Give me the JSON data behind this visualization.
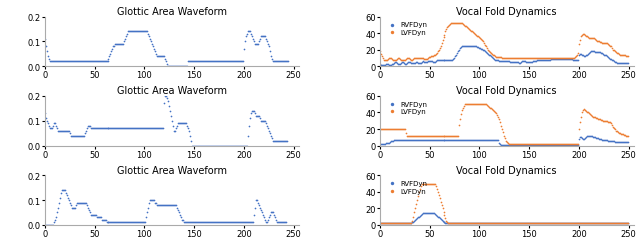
{
  "title_left": "Glottic Area Waveform",
  "title_right": "Vocal Fold Dynamics",
  "legend_label1": "RVFDyn",
  "legend_label2": "LVFDyn",
  "dot_color_blue": "#4472C4",
  "dot_color_orange": "#ED7D31",
  "background_color": "#ffffff",
  "xlim": [
    0,
    255
  ],
  "ylim_left": [
    0,
    0.2
  ],
  "ylim_right": [
    0,
    60
  ],
  "yticks_left": [
    0.0,
    0.1,
    0.2
  ],
  "yticks_right": [
    0,
    20,
    40,
    60
  ],
  "xticks": [
    0,
    50,
    100,
    150,
    200,
    250
  ],
  "row1_left_y": [
    0.11,
    0.08,
    0.06,
    0.04,
    0.03,
    0.02,
    0.02,
    0.02,
    0.02,
    0.02,
    0.02,
    0.02,
    0.02,
    0.02,
    0.02,
    0.02,
    0.02,
    0.02,
    0.02,
    0.02,
    0.02,
    0.02,
    0.02,
    0.02,
    0.02,
    0.02,
    0.02,
    0.02,
    0.02,
    0.02,
    0.02,
    0.02,
    0.02,
    0.02,
    0.02,
    0.02,
    0.02,
    0.02,
    0.02,
    0.02,
    0.02,
    0.02,
    0.02,
    0.02,
    0.02,
    0.02,
    0.02,
    0.02,
    0.02,
    0.02,
    0.02,
    0.02,
    0.02,
    0.02,
    0.02,
    0.02,
    0.02,
    0.02,
    0.02,
    0.02,
    0.02,
    0.02,
    0.02,
    0.02,
    0.03,
    0.04,
    0.05,
    0.06,
    0.07,
    0.08,
    0.08,
    0.09,
    0.09,
    0.09,
    0.09,
    0.09,
    0.09,
    0.09,
    0.09,
    0.09,
    0.1,
    0.11,
    0.12,
    0.13,
    0.14,
    0.14,
    0.14,
    0.14,
    0.14,
    0.14,
    0.14,
    0.14,
    0.14,
    0.14,
    0.14,
    0.14,
    0.14,
    0.14,
    0.14,
    0.14,
    0.14,
    0.14,
    0.14,
    0.14,
    0.13,
    0.12,
    0.11,
    0.1,
    0.09,
    0.08,
    0.07,
    0.06,
    0.05,
    0.04,
    0.04,
    0.04,
    0.04,
    0.04,
    0.04,
    0.04,
    0.04,
    0.03,
    0.02,
    0.01,
    0.0,
    0.0,
    0.0,
    0.0,
    0.0,
    0.0,
    0.0,
    0.0,
    0.0,
    0.0,
    0.0,
    0.0,
    0.0,
    0.0,
    0.0,
    0.0,
    0.0,
    0.0,
    0.0,
    0.0,
    0.02,
    0.02,
    0.02,
    0.02,
    0.02,
    0.02,
    0.02,
    0.02,
    0.02,
    0.02,
    0.02,
    0.02,
    0.02,
    0.02,
    0.02,
    0.02,
    0.02,
    0.02,
    0.02,
    0.02,
    0.02,
    0.02,
    0.02,
    0.02,
    0.02,
    0.02,
    0.02,
    0.02,
    0.02,
    0.02,
    0.02,
    0.02,
    0.02,
    0.02,
    0.02,
    0.02,
    0.02,
    0.02,
    0.02,
    0.02,
    0.02,
    0.02,
    0.02,
    0.02,
    0.02,
    0.02,
    0.02,
    0.02,
    0.02,
    0.02,
    0.02,
    0.02,
    0.02,
    0.02,
    0.02,
    0.02,
    0.07,
    0.1,
    0.12,
    0.13,
    0.14,
    0.14,
    0.14,
    0.13,
    0.12,
    0.11,
    0.1,
    0.09,
    0.09,
    0.09,
    0.09,
    0.1,
    0.11,
    0.12,
    0.12,
    0.12,
    0.12,
    0.12,
    0.11,
    0.1,
    0.09,
    0.08,
    0.06,
    0.04,
    0.03,
    0.02,
    0.02,
    0.02,
    0.02,
    0.02,
    0.02,
    0.02,
    0.02,
    0.02,
    0.02,
    0.02,
    0.02,
    0.02,
    0.02,
    0.02,
    0.02
  ],
  "row1_right_rvf_y": [
    3,
    2,
    2,
    2,
    2,
    2,
    3,
    3,
    3,
    2,
    2,
    2,
    3,
    3,
    4,
    5,
    5,
    4,
    3,
    3,
    3,
    4,
    5,
    5,
    4,
    3,
    3,
    4,
    5,
    5,
    5,
    4,
    4,
    4,
    4,
    4,
    5,
    5,
    4,
    4,
    4,
    4,
    5,
    6,
    5,
    5,
    5,
    5,
    6,
    6,
    6,
    6,
    6,
    5,
    5,
    5,
    6,
    7,
    7,
    7,
    7,
    7,
    7,
    7,
    7,
    7,
    7,
    7,
    7,
    7,
    7,
    7,
    7,
    8,
    9,
    10,
    12,
    14,
    16,
    18,
    20,
    22,
    23,
    24,
    25,
    25,
    25,
    24,
    24,
    24,
    24,
    24,
    25,
    25,
    25,
    24,
    24,
    24,
    23,
    23,
    22,
    22,
    21,
    21,
    20,
    19,
    18,
    17,
    16,
    15,
    14,
    13,
    12,
    11,
    10,
    9,
    8,
    7,
    7,
    7,
    6,
    6,
    6,
    6,
    6,
    6,
    6,
    6,
    6,
    6,
    6,
    5,
    5,
    5,
    5,
    5,
    5,
    5,
    5,
    5,
    4,
    4,
    5,
    6,
    6,
    6,
    6,
    5,
    5,
    5,
    5,
    5,
    5,
    5,
    6,
    6,
    6,
    6,
    7,
    7,
    7,
    7,
    7,
    7,
    7,
    7,
    7,
    7,
    7,
    8,
    8,
    8,
    9,
    9,
    9,
    9,
    9,
    9,
    9,
    9,
    9,
    9,
    9,
    9,
    9,
    9,
    9,
    9,
    9,
    9,
    9,
    9,
    9,
    9,
    8,
    8,
    7,
    7,
    7,
    7,
    14,
    15,
    15,
    14,
    13,
    12,
    12,
    13,
    14,
    15,
    16,
    17,
    18,
    18,
    18,
    18,
    17,
    17,
    17,
    17,
    17,
    17,
    16,
    16,
    15,
    14,
    14,
    13,
    12,
    11,
    10,
    9,
    9,
    8,
    7,
    6,
    5,
    5,
    4,
    4,
    4,
    4,
    4,
    4,
    4,
    4,
    4,
    4,
    4,
    4
  ],
  "row1_right_lvf_y": [
    18,
    15,
    12,
    10,
    8,
    7,
    7,
    8,
    9,
    10,
    10,
    10,
    9,
    8,
    8,
    8,
    8,
    9,
    10,
    10,
    9,
    8,
    7,
    7,
    7,
    8,
    9,
    10,
    10,
    10,
    9,
    8,
    8,
    9,
    10,
    10,
    10,
    10,
    10,
    10,
    10,
    10,
    10,
    10,
    9,
    9,
    9,
    9,
    10,
    11,
    11,
    12,
    12,
    12,
    13,
    14,
    15,
    16,
    18,
    20,
    22,
    25,
    28,
    32,
    35,
    38,
    42,
    45,
    47,
    49,
    50,
    51,
    52,
    52,
    52,
    52,
    52,
    52,
    52,
    52,
    52,
    52,
    52,
    52,
    51,
    50,
    49,
    48,
    47,
    46,
    45,
    44,
    43,
    42,
    41,
    40,
    39,
    38,
    37,
    36,
    35,
    34,
    33,
    32,
    30,
    28,
    26,
    24,
    22,
    20,
    18,
    17,
    16,
    15,
    14,
    13,
    12,
    11,
    11,
    11,
    11,
    11,
    11,
    10,
    10,
    10,
    10,
    10,
    10,
    10,
    10,
    10,
    10,
    10,
    10,
    10,
    10,
    10,
    10,
    10,
    10,
    10,
    10,
    10,
    10,
    10,
    10,
    10,
    10,
    10,
    10,
    10,
    10,
    10,
    10,
    10,
    10,
    10,
    10,
    10,
    10,
    10,
    10,
    10,
    10,
    10,
    10,
    10,
    10,
    10,
    10,
    10,
    10,
    10,
    10,
    10,
    10,
    10,
    10,
    10,
    10,
    10,
    10,
    10,
    10,
    10,
    10,
    10,
    10,
    10,
    10,
    10,
    10,
    10,
    10,
    10,
    11,
    12,
    14,
    16,
    27,
    32,
    36,
    38,
    39,
    39,
    38,
    37,
    36,
    35,
    34,
    34,
    34,
    34,
    34,
    34,
    33,
    32,
    31,
    30,
    30,
    29,
    29,
    28,
    28,
    28,
    28,
    28,
    28,
    27,
    26,
    25,
    24,
    22,
    20,
    19,
    18,
    17,
    16,
    16,
    15,
    14,
    14,
    14,
    14,
    13,
    13,
    12,
    12,
    12
  ],
  "row2_left_y": [
    0.13,
    0.11,
    0.1,
    0.09,
    0.08,
    0.07,
    0.07,
    0.07,
    0.08,
    0.09,
    0.09,
    0.08,
    0.07,
    0.06,
    0.06,
    0.06,
    0.06,
    0.06,
    0.06,
    0.06,
    0.06,
    0.06,
    0.06,
    0.06,
    0.06,
    0.05,
    0.04,
    0.04,
    0.04,
    0.04,
    0.04,
    0.04,
    0.04,
    0.04,
    0.04,
    0.04,
    0.04,
    0.04,
    0.04,
    0.04,
    0.05,
    0.06,
    0.07,
    0.08,
    0.08,
    0.08,
    0.07,
    0.07,
    0.07,
    0.07,
    0.07,
    0.07,
    0.07,
    0.07,
    0.07,
    0.07,
    0.07,
    0.07,
    0.07,
    0.07,
    0.07,
    0.07,
    0.07,
    0.07,
    0.07,
    0.07,
    0.07,
    0.07,
    0.07,
    0.07,
    0.07,
    0.07,
    0.07,
    0.07,
    0.07,
    0.07,
    0.07,
    0.07,
    0.07,
    0.07,
    0.07,
    0.07,
    0.07,
    0.07,
    0.07,
    0.07,
    0.07,
    0.07,
    0.07,
    0.07,
    0.07,
    0.07,
    0.07,
    0.07,
    0.07,
    0.07,
    0.07,
    0.07,
    0.07,
    0.07,
    0.07,
    0.07,
    0.07,
    0.07,
    0.07,
    0.07,
    0.07,
    0.07,
    0.07,
    0.07,
    0.07,
    0.07,
    0.07,
    0.07,
    0.07,
    0.07,
    0.07,
    0.07,
    0.07,
    0.07,
    0.17,
    0.2,
    0.2,
    0.19,
    0.18,
    0.16,
    0.14,
    0.12,
    0.1,
    0.08,
    0.06,
    0.06,
    0.07,
    0.08,
    0.09,
    0.09,
    0.09,
    0.09,
    0.09,
    0.09,
    0.09,
    0.09,
    0.09,
    0.08,
    0.07,
    0.06,
    0.04,
    0.02,
    0.0,
    0.0,
    0.0,
    0.0,
    0.0,
    0.0,
    0.0,
    0.0,
    0.0,
    0.0,
    0.0,
    0.0,
    0.0,
    0.0,
    0.0,
    0.0,
    0.0,
    0.0,
    0.0,
    0.0,
    0.0,
    0.0,
    0.0,
    0.0,
    0.0,
    0.0,
    0.0,
    0.0,
    0.0,
    0.0,
    0.0,
    0.0,
    0.0,
    0.0,
    0.0,
    0.0,
    0.0,
    0.0,
    0.0,
    0.0,
    0.0,
    0.0,
    0.0,
    0.0,
    0.0,
    0.0,
    0.0,
    0.0,
    0.0,
    0.0,
    0.0,
    0.0,
    0.0,
    0.0,
    0.0,
    0.0,
    0.04,
    0.08,
    0.11,
    0.13,
    0.14,
    0.14,
    0.14,
    0.13,
    0.12,
    0.12,
    0.12,
    0.12,
    0.11,
    0.1,
    0.1,
    0.1,
    0.1,
    0.1,
    0.09,
    0.08,
    0.07,
    0.06,
    0.05,
    0.04,
    0.03,
    0.02,
    0.02,
    0.02,
    0.02,
    0.02,
    0.02,
    0.02,
    0.02,
    0.02,
    0.02,
    0.02,
    0.02,
    0.02,
    0.02,
    0.02
  ],
  "row2_right_rvf_y": [
    2,
    2,
    2,
    2,
    2,
    2,
    3,
    3,
    3,
    3,
    4,
    5,
    6,
    6,
    7,
    7,
    7,
    7,
    7,
    7,
    7,
    7,
    7,
    7,
    7,
    7,
    7,
    7,
    7,
    7,
    7,
    7,
    7,
    7,
    7,
    7,
    7,
    7,
    7,
    7,
    7,
    7,
    7,
    7,
    7,
    7,
    7,
    7,
    7,
    7,
    7,
    7,
    7,
    7,
    7,
    7,
    7,
    7,
    7,
    7,
    7,
    7,
    7,
    7,
    7,
    7,
    7,
    7,
    7,
    7,
    7,
    7,
    7,
    7,
    7,
    7,
    7,
    7,
    7,
    7,
    7,
    7,
    7,
    7,
    7,
    7,
    7,
    7,
    7,
    7,
    7,
    7,
    7,
    7,
    7,
    7,
    7,
    7,
    7,
    7,
    7,
    7,
    7,
    7,
    7,
    7,
    7,
    7,
    7,
    7,
    7,
    7,
    7,
    7,
    7,
    7,
    7,
    7,
    7,
    7,
    3,
    2,
    1,
    1,
    1,
    1,
    1,
    1,
    1,
    1,
    1,
    1,
    1,
    1,
    1,
    1,
    1,
    1,
    1,
    1,
    1,
    1,
    1,
    1,
    1,
    1,
    1,
    1,
    1,
    1,
    1,
    1,
    1,
    1,
    1,
    1,
    1,
    1,
    1,
    1,
    1,
    1,
    1,
    1,
    1,
    1,
    1,
    1,
    1,
    1,
    1,
    1,
    1,
    1,
    1,
    1,
    1,
    1,
    1,
    1,
    1,
    1,
    1,
    1,
    1,
    1,
    1,
    1,
    1,
    1,
    1,
    1,
    1,
    1,
    1,
    1,
    1,
    1,
    1,
    1,
    8,
    10,
    10,
    9,
    8,
    8,
    9,
    10,
    11,
    12,
    12,
    12,
    12,
    11,
    10,
    10,
    10,
    9,
    9,
    9,
    8,
    8,
    8,
    7,
    7,
    7,
    7,
    7,
    7,
    6,
    6,
    6,
    5,
    5,
    5,
    5,
    4,
    4,
    4,
    4,
    4,
    4,
    4,
    4,
    4,
    4,
    4,
    4,
    4,
    4
  ],
  "row2_right_lvf_y": [
    20,
    20,
    20,
    20,
    20,
    20,
    20,
    20,
    20,
    20,
    20,
    20,
    20,
    20,
    20,
    20,
    20,
    20,
    20,
    20,
    20,
    20,
    20,
    20,
    20,
    20,
    15,
    12,
    12,
    12,
    12,
    12,
    12,
    12,
    12,
    12,
    12,
    12,
    12,
    12,
    12,
    12,
    12,
    12,
    12,
    12,
    12,
    12,
    12,
    12,
    12,
    12,
    12,
    12,
    12,
    12,
    12,
    12,
    12,
    12,
    12,
    12,
    12,
    12,
    12,
    12,
    12,
    12,
    12,
    12,
    12,
    12,
    12,
    12,
    12,
    12,
    12,
    12,
    12,
    12,
    25,
    32,
    38,
    43,
    46,
    48,
    50,
    50,
    50,
    50,
    50,
    50,
    50,
    50,
    50,
    50,
    50,
    50,
    50,
    50,
    50,
    50,
    50,
    50,
    50,
    50,
    50,
    50,
    49,
    48,
    47,
    46,
    45,
    44,
    43,
    42,
    41,
    39,
    37,
    35,
    32,
    28,
    24,
    20,
    16,
    12,
    9,
    6,
    4,
    3,
    2,
    2,
    2,
    2,
    2,
    2,
    2,
    2,
    2,
    2,
    2,
    2,
    2,
    2,
    2,
    2,
    2,
    2,
    2,
    2,
    2,
    2,
    2,
    2,
    2,
    2,
    2,
    2,
    2,
    2,
    2,
    2,
    2,
    2,
    2,
    2,
    2,
    2,
    2,
    2,
    2,
    2,
    2,
    2,
    2,
    2,
    2,
    2,
    2,
    2,
    2,
    2,
    2,
    2,
    2,
    2,
    2,
    2,
    2,
    2,
    2,
    2,
    2,
    2,
    2,
    2,
    2,
    2,
    2,
    2,
    20,
    28,
    35,
    40,
    43,
    44,
    43,
    42,
    41,
    40,
    39,
    38,
    37,
    36,
    35,
    34,
    34,
    33,
    33,
    32,
    32,
    32,
    31,
    31,
    30,
    30,
    30,
    30,
    30,
    29,
    29,
    28,
    27,
    25,
    23,
    21,
    20,
    18,
    17,
    16,
    15,
    15,
    14,
    14,
    14,
    13,
    13,
    12,
    12,
    12
  ],
  "row3_left_y": [
    0.0,
    0.0,
    0.0,
    0.0,
    0.0,
    0.0,
    0.0,
    0.0,
    0.0,
    0.01,
    0.02,
    0.03,
    0.05,
    0.07,
    0.09,
    0.11,
    0.13,
    0.14,
    0.14,
    0.14,
    0.14,
    0.13,
    0.12,
    0.11,
    0.1,
    0.09,
    0.08,
    0.07,
    0.07,
    0.07,
    0.07,
    0.08,
    0.09,
    0.09,
    0.09,
    0.09,
    0.09,
    0.09,
    0.09,
    0.09,
    0.09,
    0.09,
    0.08,
    0.07,
    0.06,
    0.05,
    0.04,
    0.04,
    0.04,
    0.04,
    0.04,
    0.04,
    0.03,
    0.03,
    0.03,
    0.03,
    0.03,
    0.02,
    0.02,
    0.02,
    0.02,
    0.02,
    0.01,
    0.01,
    0.01,
    0.01,
    0.01,
    0.01,
    0.01,
    0.01,
    0.01,
    0.01,
    0.01,
    0.01,
    0.01,
    0.01,
    0.01,
    0.01,
    0.01,
    0.01,
    0.01,
    0.01,
    0.01,
    0.01,
    0.01,
    0.01,
    0.01,
    0.01,
    0.01,
    0.01,
    0.01,
    0.01,
    0.01,
    0.01,
    0.01,
    0.01,
    0.01,
    0.01,
    0.01,
    0.01,
    0.01,
    0.01,
    0.03,
    0.05,
    0.07,
    0.09,
    0.1,
    0.1,
    0.1,
    0.1,
    0.1,
    0.09,
    0.09,
    0.08,
    0.08,
    0.08,
    0.08,
    0.08,
    0.08,
    0.08,
    0.08,
    0.08,
    0.08,
    0.08,
    0.08,
    0.08,
    0.08,
    0.08,
    0.08,
    0.08,
    0.08,
    0.08,
    0.08,
    0.07,
    0.06,
    0.05,
    0.04,
    0.03,
    0.02,
    0.02,
    0.01,
    0.01,
    0.01,
    0.01,
    0.01,
    0.01,
    0.01,
    0.01,
    0.01,
    0.01,
    0.01,
    0.01,
    0.01,
    0.01,
    0.01,
    0.01,
    0.01,
    0.01,
    0.01,
    0.01,
    0.01,
    0.01,
    0.01,
    0.01,
    0.01,
    0.01,
    0.01,
    0.01,
    0.01,
    0.01,
    0.01,
    0.01,
    0.01,
    0.01,
    0.01,
    0.01,
    0.01,
    0.01,
    0.01,
    0.01,
    0.01,
    0.01,
    0.01,
    0.01,
    0.01,
    0.01,
    0.01,
    0.01,
    0.01,
    0.01,
    0.01,
    0.01,
    0.01,
    0.01,
    0.01,
    0.01,
    0.01,
    0.01,
    0.01,
    0.01,
    0.01,
    0.01,
    0.01,
    0.01,
    0.01,
    0.01,
    0.01,
    0.01,
    0.01,
    0.01,
    0.04,
    0.07,
    0.1,
    0.1,
    0.09,
    0.08,
    0.07,
    0.06,
    0.05,
    0.04,
    0.03,
    0.02,
    0.01,
    0.01,
    0.02,
    0.03,
    0.04,
    0.05,
    0.05,
    0.05,
    0.04,
    0.03,
    0.02,
    0.01,
    0.01,
    0.01,
    0.01,
    0.01,
    0.01,
    0.01,
    0.01,
    0.01,
    0.01
  ],
  "row3_right_rvf_y": [
    2,
    2,
    2,
    2,
    2,
    2,
    2,
    2,
    2,
    2,
    2,
    2,
    2,
    2,
    2,
    2,
    2,
    2,
    2,
    2,
    2,
    2,
    2,
    2,
    2,
    2,
    2,
    2,
    2,
    2,
    2,
    2,
    3,
    4,
    5,
    6,
    7,
    8,
    9,
    10,
    11,
    12,
    13,
    14,
    14,
    14,
    14,
    14,
    14,
    14,
    14,
    14,
    14,
    14,
    14,
    13,
    12,
    11,
    10,
    9,
    8,
    7,
    6,
    5,
    4,
    3,
    2,
    2,
    2,
    2,
    2,
    2,
    2,
    2,
    2,
    2,
    2,
    2,
    2,
    2,
    2,
    2,
    2,
    2,
    2,
    2,
    2,
    2,
    2,
    2,
    2,
    2,
    2,
    2,
    2,
    2,
    2,
    2,
    2,
    2,
    2,
    2,
    2,
    2,
    2,
    2,
    2,
    2,
    2,
    2,
    2,
    2,
    2,
    2,
    2,
    2,
    2,
    2,
    2,
    2,
    2,
    2,
    2,
    2,
    2,
    2,
    2,
    2,
    2,
    2,
    2,
    2,
    2,
    2,
    2,
    2,
    2,
    2,
    2,
    2,
    2,
    2,
    2,
    2,
    2,
    2,
    2,
    2,
    2,
    2,
    2,
    2,
    2,
    2,
    2,
    2,
    2,
    2,
    2,
    2,
    2,
    2,
    2,
    2,
    2,
    2,
    2,
    2,
    2,
    2,
    2,
    2,
    2,
    2,
    2,
    2,
    2,
    2,
    2,
    2,
    2,
    2,
    2,
    2,
    2,
    2,
    2,
    2,
    2,
    2,
    2,
    2,
    2,
    2,
    2,
    2,
    2,
    2,
    2,
    2,
    2,
    2,
    2,
    2,
    2,
    2,
    2,
    2,
    2,
    2,
    2,
    2,
    2,
    2,
    2,
    2,
    2,
    2,
    2,
    2,
    2,
    2,
    2,
    2,
    2,
    2,
    2,
    2,
    2,
    2,
    2,
    2,
    2,
    2,
    2,
    2,
    2,
    2,
    2,
    2,
    2,
    2,
    2,
    2,
    2,
    2,
    2,
    2,
    2,
    2
  ],
  "row3_right_lvf_y": [
    2,
    2,
    2,
    2,
    2,
    2,
    2,
    2,
    2,
    2,
    2,
    2,
    2,
    2,
    2,
    2,
    2,
    2,
    2,
    2,
    2,
    2,
    2,
    2,
    2,
    2,
    2,
    2,
    2,
    2,
    2,
    2,
    5,
    10,
    15,
    20,
    25,
    30,
    35,
    40,
    44,
    47,
    49,
    50,
    50,
    50,
    50,
    50,
    50,
    50,
    50,
    50,
    50,
    50,
    50,
    49,
    47,
    44,
    40,
    36,
    32,
    28,
    24,
    20,
    16,
    12,
    8,
    5,
    3,
    2,
    2,
    2,
    2,
    2,
    2,
    2,
    2,
    2,
    2,
    2,
    2,
    2,
    2,
    2,
    2,
    2,
    2,
    2,
    2,
    2,
    2,
    2,
    2,
    2,
    2,
    2,
    2,
    2,
    2,
    2,
    2,
    2,
    2,
    2,
    2,
    2,
    2,
    2,
    2,
    2,
    2,
    2,
    2,
    2,
    2,
    2,
    2,
    2,
    2,
    2,
    2,
    2,
    2,
    2,
    2,
    2,
    2,
    2,
    2,
    2,
    2,
    2,
    2,
    2,
    2,
    2,
    2,
    2,
    2,
    2,
    2,
    2,
    2,
    2,
    2,
    2,
    2,
    2,
    2,
    2,
    2,
    2,
    2,
    2,
    2,
    2,
    2,
    2,
    2,
    2,
    2,
    2,
    2,
    2,
    2,
    2,
    2,
    2,
    2,
    2,
    2,
    2,
    2,
    2,
    2,
    2,
    2,
    2,
    2,
    2,
    2,
    2,
    2,
    2,
    2,
    2,
    2,
    2,
    2,
    2,
    2,
    2,
    2,
    2,
    2,
    2,
    2,
    2,
    2,
    2,
    2,
    2,
    2,
    2,
    2,
    2,
    2,
    2,
    2,
    2,
    2,
    2,
    2,
    2,
    2,
    2,
    2,
    2,
    2,
    2,
    2,
    2,
    2,
    2,
    2,
    2,
    2,
    2,
    2,
    2,
    2,
    2,
    2,
    2,
    2,
    2,
    2,
    2,
    2,
    2,
    2,
    2,
    2,
    2,
    2,
    2,
    2,
    2,
    2,
    2
  ]
}
